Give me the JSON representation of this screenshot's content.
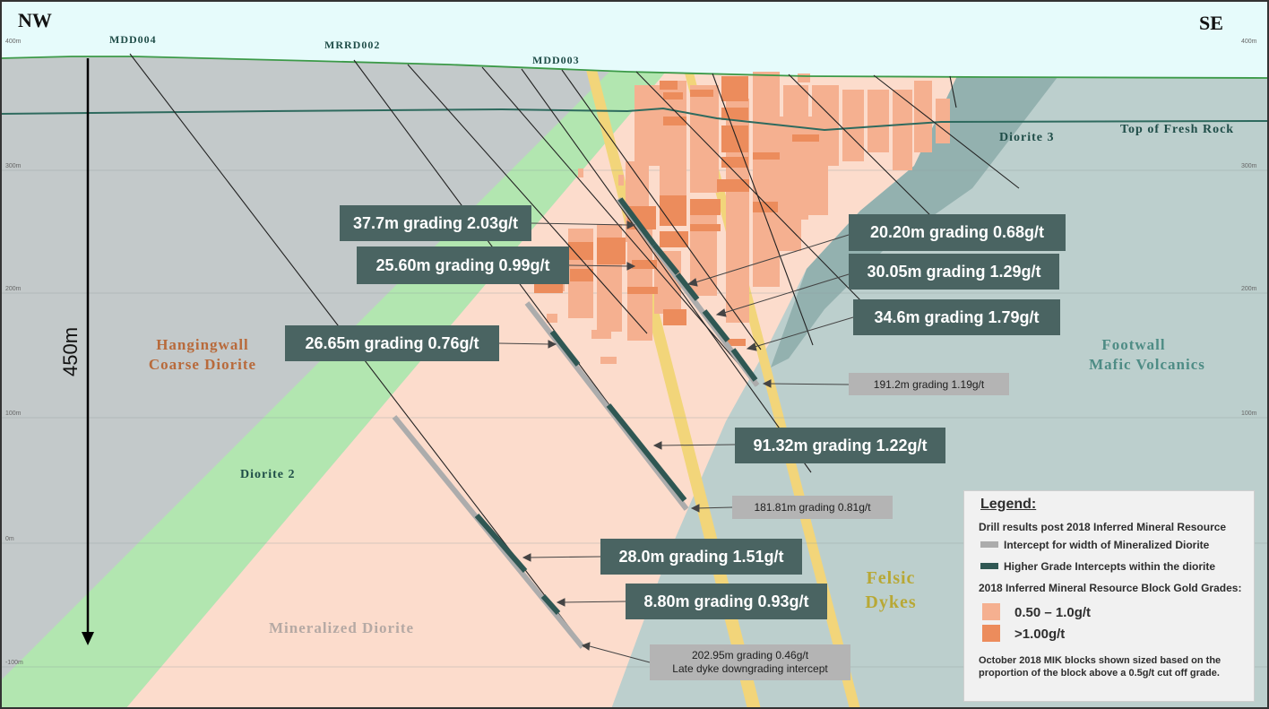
{
  "directions": {
    "left": "NW",
    "right": "SE"
  },
  "elevations": {
    "left": [
      "400m",
      "300m",
      "200m",
      "100m",
      "0m",
      "-100m"
    ],
    "right": [
      "400m",
      "300m",
      "200m",
      "100m"
    ]
  },
  "scale_bar": {
    "label": "450m"
  },
  "drillholes": [
    "MDD004",
    "MRRD002",
    "MDD003"
  ],
  "rock_units": {
    "top_fresh_rock": "Top of Fresh Rock",
    "diorite3": "Diorite 3",
    "hangingwall_line1": "Hangingwall",
    "hangingwall_line2": "Coarse Diorite",
    "footwall_line1": "Footwall",
    "footwall_line2": "Mafic Volcanics",
    "diorite2": "Diorite 2",
    "mineralized": "Mineralized Diorite",
    "felsic_line1": "Felsic",
    "felsic_line2": "Dykes"
  },
  "callouts": {
    "c1": "37.7m grading 2.03g/t",
    "c2": "25.60m grading 0.99g/t",
    "c3": "20.20m grading 0.68g/t",
    "c4": "30.05m grading 1.29g/t",
    "c5": "34.6m grading 1.79g/t",
    "c6": "26.65m grading 0.76g/t",
    "c7": "191.2m grading 1.19g/t",
    "c8": "91.32m grading 1.22g/t",
    "c9": "181.81m grading 0.81g/t",
    "c10": "28.0m grading 1.51g/t",
    "c11": "8.80m grading 0.93g/t",
    "c12a": "202.95m grading 0.46g/t",
    "c12b": "Late dyke downgrading intercept"
  },
  "legend": {
    "title": "Legend:",
    "subtitle": "Drill results post 2018 Inferred Mineral Resource",
    "item1": "Intercept for width of Mineralized Diorite",
    "item2": "Higher Grade Intercepts within the diorite",
    "block_title": "2018 Inferred Mineral Resource Block Gold Grades:",
    "grade1": "0.50 – 1.0g/t",
    "grade2": ">1.00g/t",
    "note": "October 2018 MIK blocks shown sized based on the proportion of the block above a 0.5g/t cut off grade."
  },
  "colors": {
    "sky": "#e6fbfb",
    "hangingwall": "#c3c9ca",
    "footwall": "#bccfcd",
    "diorite3": "#93b1af",
    "diorite2": "#b2e6b0",
    "mineralized": "#fcdccc",
    "felsic_dyke": "#f2d57a",
    "block_low": "#f5b090",
    "block_high": "#ec8c5c",
    "intercept_gray": "#acacac",
    "intercept_dark": "#2f5753",
    "callout_dark": "#4a6462",
    "callout_light": "#b4b4b4"
  }
}
